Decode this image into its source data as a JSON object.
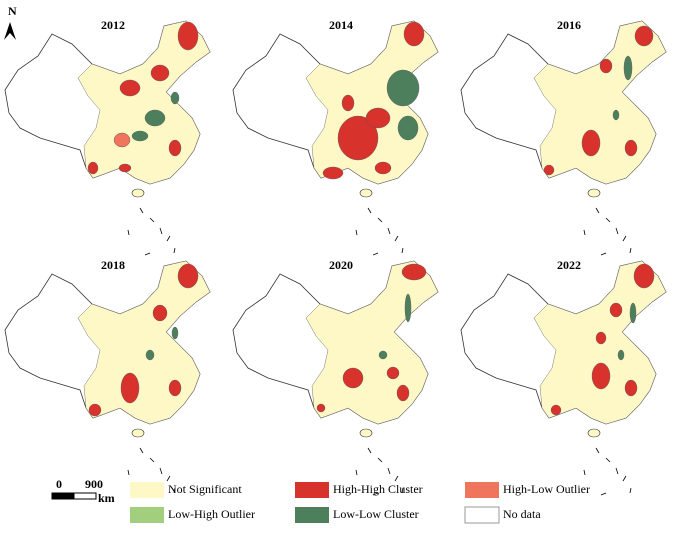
{
  "north": "N",
  "panels": [
    {
      "year": "2012"
    },
    {
      "year": "2014"
    },
    {
      "year": "2016"
    },
    {
      "year": "2018"
    },
    {
      "year": "2020"
    },
    {
      "year": "2022"
    }
  ],
  "scale_bar": {
    "start": "0",
    "end": "900",
    "unit": "km"
  },
  "legend": [
    {
      "label": "Not Significant",
      "color": "#fdf8c6"
    },
    {
      "label": "High-High Cluster",
      "color": "#d7322c"
    },
    {
      "label": "High-Low Outlier",
      "color": "#ef765c"
    },
    {
      "label": "Low-High Outlier",
      "color": "#a2cf7e"
    },
    {
      "label": "Low-Low Cluster",
      "color": "#4e7f5c"
    },
    {
      "label": "No data",
      "color": "#ffffff"
    }
  ]
}
